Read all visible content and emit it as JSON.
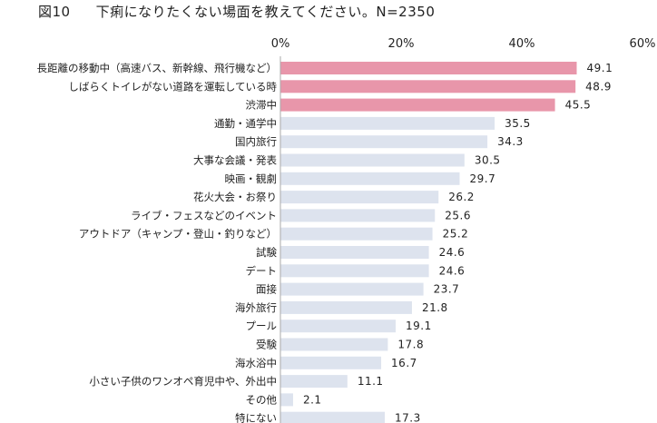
{
  "figure": {
    "number": "図10",
    "title": "下痢になりたくない場面を教えてください。N=2350"
  },
  "colors": {
    "highlight": "#e896aa",
    "normal": "#dde3ee",
    "axis": "#aaaaaa"
  },
  "chart_data": {
    "type": "bar",
    "orientation": "horizontal",
    "x_ticks": [
      "0%",
      "20%",
      "40%",
      "60%"
    ],
    "xlim": [
      0,
      60
    ],
    "grid": false,
    "categories": [
      "長距離の移動中（高速バス、新幹線、飛行機など）",
      "しばらくトイレがない道路を運転している時",
      "渋滞中",
      "通勤・通学中",
      "国内旅行",
      "大事な会議・発表",
      "映画・観劇",
      "花火大会・お祭り",
      "ライブ・フェスなどのイベント",
      "アウトドア（キャンプ・登山・釣りなど）",
      "試験",
      "デート",
      "面接",
      "海外旅行",
      "プール",
      "受験",
      "海水浴中",
      "小さい子供のワンオペ育児中や、外出中",
      "その他",
      "特にない"
    ],
    "values": [
      49.1,
      48.9,
      45.5,
      35.5,
      34.3,
      30.5,
      29.7,
      26.2,
      25.6,
      25.2,
      24.6,
      24.6,
      23.7,
      21.8,
      19.1,
      17.8,
      16.7,
      11.1,
      2.1,
      17.3
    ],
    "value_labels": [
      "49.1",
      "48.9",
      "45.5",
      "35.5",
      "34.3",
      "30.5",
      "29.7",
      "26.2",
      "25.6",
      "25.2",
      "24.6",
      "24.6",
      "23.7",
      "21.8",
      "19.1",
      "17.8",
      "16.7",
      "11.1",
      "2.1",
      "17.3"
    ],
    "highlighted_categories": [
      0,
      1,
      2
    ]
  }
}
